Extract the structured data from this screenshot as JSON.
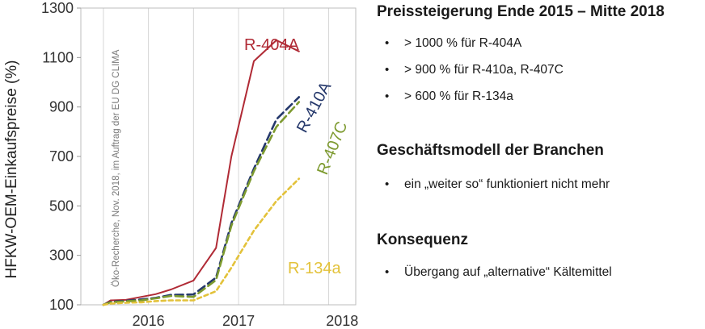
{
  "chart_data": {
    "type": "line",
    "ylabel": "HFKW-OEM-Einkaufspreise (%)",
    "ylim": [
      100,
      1300
    ],
    "yticks": [
      100,
      300,
      500,
      700,
      900,
      1100,
      1300
    ],
    "xticks": [
      "2016",
      "2017",
      "2018"
    ],
    "note": "Öko-Recherche, Nov. 2018, im Auftrag der EU DG CLIMA",
    "x": [
      2015.5,
      2015.58,
      2015.75,
      2015.92,
      2016.08,
      2016.25,
      2016.5,
      2016.75,
      2016.92,
      2017.17,
      2017.42,
      2017.67,
      2017.83
    ],
    "series": [
      {
        "name": "R-404A",
        "color": "#b02a35",
        "dash": "",
        "values": [
          100,
          118,
          120,
          132,
          143,
          162,
          198,
          330,
          700,
          1085,
          1170,
          1125,
          null
        ]
      },
      {
        "name": "R-410A",
        "color": "#25386b",
        "dash": "10,5",
        "values": [
          100,
          112,
          116,
          122,
          128,
          140,
          142,
          210,
          430,
          650,
          850,
          940,
          null
        ]
      },
      {
        "name": "R-407C",
        "color": "#7d9a2f",
        "dash": "10,5",
        "values": [
          100,
          110,
          114,
          118,
          126,
          136,
          132,
          200,
          420,
          640,
          820,
          920,
          null
        ]
      },
      {
        "name": "R-134a",
        "color": "#e3c23a",
        "dash": "5,4",
        "values": [
          100,
          105,
          108,
          110,
          115,
          118,
          118,
          155,
          250,
          400,
          520,
          610,
          null
        ]
      }
    ]
  },
  "panel": {
    "sections": [
      {
        "title": "Preissteigerung Ende 2015 – Mitte 2018",
        "bullets": [
          "> 1000 % für R-404A",
          "> 900 % für R-410a, R-407C",
          "> 600 % für R-134a"
        ]
      },
      {
        "title": "Geschäftsmodell der Branchen",
        "bullets": [
          "ein „weiter so“ funktioniert nicht mehr"
        ]
      },
      {
        "title": "Konsequenz",
        "bullets": [
          "Übergang auf „alternative“ Kältemittel"
        ]
      }
    ],
    "bullet_symbol": "•"
  }
}
